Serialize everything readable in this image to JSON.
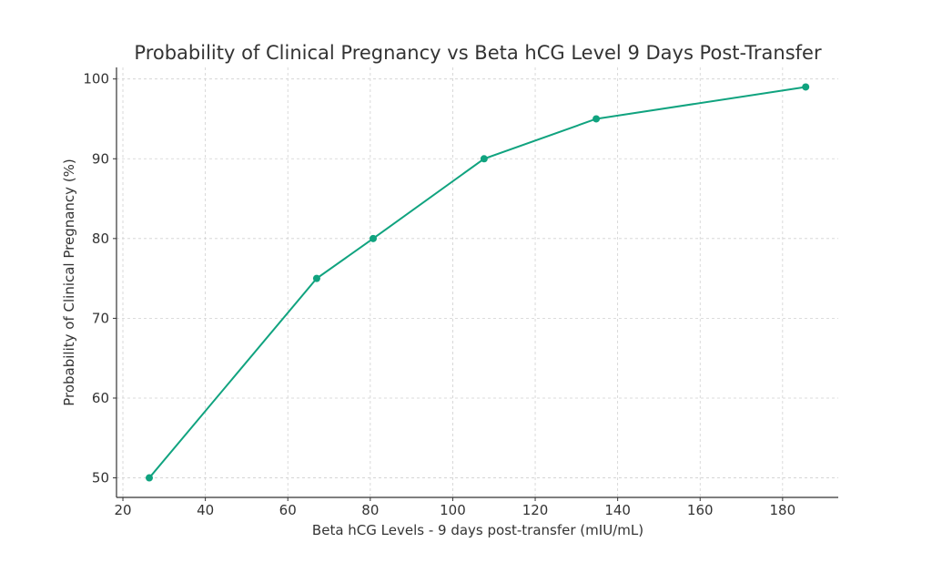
{
  "chart_data": {
    "type": "line",
    "title": "Probability of Clinical Pregnancy vs Beta hCG Level 9 Days Post-Transfer",
    "xlabel": "Beta hCG Levels - 9 days post-transfer (mIU/mL)",
    "ylabel": "Probability of Clinical Pregnancy (%)",
    "x": [
      26.4,
      67,
      80.7,
      107.6,
      134.8,
      185.6
    ],
    "y": [
      50,
      75,
      80,
      90,
      95,
      99
    ],
    "xlim": [
      18.45,
      193.5
    ],
    "ylim": [
      47.55,
      101.45
    ],
    "xticks": [
      20,
      40,
      60,
      80,
      100,
      120,
      140,
      160,
      180
    ],
    "yticks": [
      50,
      60,
      70,
      80,
      90,
      100
    ],
    "grid": true,
    "marker": "circle",
    "color": "#10a37f"
  }
}
